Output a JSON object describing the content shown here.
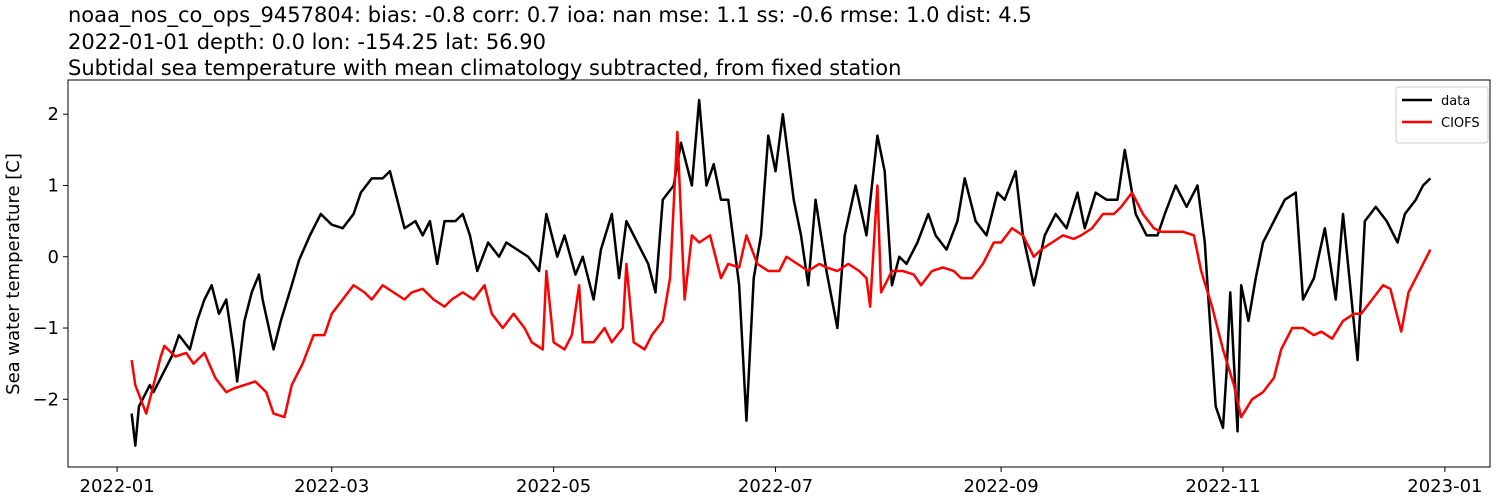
{
  "chart_data": {
    "type": "line",
    "title": [
      "noaa_nos_co_ops_9457804: bias: -0.8  corr: 0.7  ioa: nan  mse: 1.1  ss: -0.6  rmse: 1.0  dist: 4.5",
      "2022-01-01 depth: 0.0 lon: -154.25 lat: 56.90",
      "Subtidal sea temperature with mean climatology subtracted, from fixed station"
    ],
    "ylabel": "Sea water temperature [C]",
    "xlim": [
      -13.5,
      377.4
    ],
    "xticks": [
      {
        "value": 0,
        "label": "2022-01"
      },
      {
        "value": 59,
        "label": "2022-03"
      },
      {
        "value": 120,
        "label": "2022-05"
      },
      {
        "value": 181,
        "label": "2022-07"
      },
      {
        "value": 243,
        "label": "2022-09"
      },
      {
        "value": 304,
        "label": "2022-11"
      },
      {
        "value": 365,
        "label": "2023-01"
      }
    ],
    "ylim": [
      -2.95,
      2.48
    ],
    "yticks": [
      {
        "value": -2,
        "label": "−2"
      },
      {
        "value": -1,
        "label": "−1"
      },
      0,
      1,
      2
    ],
    "legend": "upper right",
    "series": [
      {
        "name": "data",
        "color": "#000000",
        "x": [
          4,
          5,
          6,
          9,
          10,
          12,
          15,
          17,
          20,
          22,
          24,
          26,
          28,
          30,
          32,
          33,
          35,
          37,
          39,
          40,
          43,
          45,
          48,
          50,
          53,
          56,
          59,
          62,
          65,
          67,
          70,
          73,
          75,
          77,
          79,
          82,
          84,
          86,
          88,
          90,
          93,
          95,
          97,
          99,
          102,
          105,
          107,
          110,
          113,
          116,
          118,
          121,
          123,
          126,
          128,
          131,
          133,
          136,
          138,
          140,
          143,
          146,
          148,
          150,
          153,
          155,
          158,
          160,
          162,
          164,
          166,
          168,
          171,
          173,
          175,
          177,
          179,
          181,
          183,
          186,
          188,
          190,
          192,
          195,
          198,
          200,
          203,
          206,
          209,
          211,
          213,
          215,
          217,
          220,
          223,
          225,
          228,
          231,
          233,
          236,
          239,
          242,
          244,
          247,
          249,
          252,
          255,
          258,
          261,
          264,
          266,
          269,
          272,
          275,
          277,
          280,
          283,
          286,
          288,
          291,
          294,
          297,
          299,
          300,
          302,
          304,
          305,
          306,
          308,
          309,
          311,
          313,
          315,
          318,
          321,
          324,
          326,
          329,
          332,
          335,
          337,
          341,
          343,
          346,
          349,
          352,
          354,
          357,
          359,
          361
        ],
        "values": [
          -2.2,
          -2.65,
          -2.1,
          -1.8,
          -1.9,
          -1.7,
          -1.4,
          -1.1,
          -1.3,
          -0.9,
          -0.6,
          -0.4,
          -0.8,
          -0.6,
          -1.3,
          -1.75,
          -0.9,
          -0.5,
          -0.25,
          -0.6,
          -1.3,
          -0.9,
          -0.4,
          -0.05,
          0.3,
          0.6,
          0.45,
          0.4,
          0.6,
          0.9,
          1.1,
          1.1,
          1.2,
          0.8,
          0.4,
          0.5,
          0.3,
          0.5,
          -0.1,
          0.5,
          0.5,
          0.6,
          0.3,
          -0.2,
          0.2,
          0.0,
          0.2,
          0.1,
          0.0,
          -0.2,
          0.6,
          0.0,
          0.3,
          -0.25,
          0.0,
          -0.6,
          0.1,
          0.6,
          -0.3,
          0.5,
          0.2,
          -0.1,
          -0.5,
          0.8,
          1.0,
          1.6,
          1.0,
          2.2,
          1.0,
          1.3,
          0.8,
          0.8,
          -0.4,
          -2.3,
          -0.3,
          0.3,
          1.7,
          1.2,
          2.0,
          0.8,
          0.3,
          -0.4,
          0.8,
          -0.2,
          -1.0,
          0.3,
          1.0,
          0.3,
          1.7,
          1.2,
          -0.4,
          0.0,
          -0.1,
          0.2,
          0.6,
          0.3,
          0.1,
          0.5,
          1.1,
          0.5,
          0.3,
          0.9,
          0.8,
          1.2,
          0.3,
          -0.4,
          0.3,
          0.6,
          0.4,
          0.9,
          0.4,
          0.9,
          0.8,
          0.8,
          1.5,
          0.6,
          0.3,
          0.3,
          0.6,
          1.0,
          0.7,
          1.0,
          0.2,
          -0.6,
          -2.1,
          -2.4,
          -1.6,
          -0.5,
          -2.45,
          -0.4,
          -0.9,
          -0.3,
          0.2,
          0.5,
          0.8,
          0.9,
          -0.6,
          -0.3,
          0.4,
          -0.6,
          0.6,
          -1.45,
          0.5,
          0.7,
          0.5,
          0.2,
          0.6,
          0.8,
          1.0,
          1.1
        ]
      },
      {
        "name": "CIOFS",
        "color": "#ff0000",
        "x": [
          4,
          5,
          8,
          10,
          12,
          13,
          16,
          19,
          21,
          24,
          27,
          30,
          32,
          35,
          38,
          41,
          43,
          46,
          48,
          51,
          54,
          57,
          59,
          62,
          65,
          68,
          70,
          73,
          76,
          79,
          81,
          84,
          87,
          90,
          92,
          95,
          98,
          101,
          103,
          106,
          109,
          112,
          114,
          117,
          118,
          120,
          123,
          125,
          127,
          128,
          131,
          134,
          136,
          139,
          140,
          142,
          145,
          147,
          150,
          152,
          154,
          156,
          158,
          160,
          163,
          166,
          168,
          171,
          173,
          176,
          179,
          182,
          184,
          187,
          190,
          193,
          195,
          198,
          201,
          204,
          206,
          207,
          209,
          210,
          213,
          216,
          219,
          221,
          224,
          227,
          230,
          232,
          235,
          238,
          241,
          243,
          246,
          249,
          252,
          254,
          257,
          260,
          263,
          265,
          268,
          271,
          274,
          276,
          279,
          282,
          285,
          287,
          290,
          293,
          296,
          298,
          301,
          304,
          307,
          309,
          312,
          315,
          318,
          320,
          323,
          326,
          329,
          331,
          334,
          337,
          340,
          342,
          345,
          348,
          350,
          353,
          355,
          358,
          361
        ],
        "values": [
          -1.45,
          -1.8,
          -2.2,
          -1.8,
          -1.4,
          -1.25,
          -1.4,
          -1.35,
          -1.5,
          -1.35,
          -1.7,
          -1.9,
          -1.85,
          -1.8,
          -1.75,
          -1.9,
          -2.2,
          -2.25,
          -1.8,
          -1.5,
          -1.1,
          -1.1,
          -0.8,
          -0.6,
          -0.4,
          -0.5,
          -0.6,
          -0.4,
          -0.5,
          -0.6,
          -0.5,
          -0.45,
          -0.6,
          -0.7,
          -0.6,
          -0.5,
          -0.6,
          -0.4,
          -0.8,
          -1.0,
          -0.8,
          -1.0,
          -1.2,
          -1.3,
          -0.2,
          -1.2,
          -1.3,
          -1.1,
          -0.4,
          -1.2,
          -1.2,
          -1.0,
          -1.2,
          -1.0,
          -0.1,
          -1.2,
          -1.3,
          -1.1,
          -0.9,
          -0.3,
          1.75,
          -0.6,
          0.3,
          0.2,
          0.3,
          -0.3,
          -0.1,
          -0.15,
          0.3,
          -0.1,
          -0.2,
          -0.2,
          0.0,
          -0.1,
          -0.2,
          -0.1,
          -0.15,
          -0.2,
          -0.1,
          -0.2,
          -0.3,
          -0.7,
          1.0,
          -0.5,
          -0.2,
          -0.2,
          -0.25,
          -0.4,
          -0.2,
          -0.15,
          -0.2,
          -0.3,
          -0.3,
          -0.1,
          0.2,
          0.2,
          0.4,
          0.3,
          0.0,
          0.1,
          0.2,
          0.3,
          0.25,
          0.3,
          0.4,
          0.6,
          0.6,
          0.7,
          0.9,
          0.6,
          0.4,
          0.35,
          0.35,
          0.35,
          0.3,
          -0.2,
          -0.7,
          -1.3,
          -1.8,
          -2.25,
          -2.0,
          -1.9,
          -1.7,
          -1.3,
          -1.0,
          -1.0,
          -1.1,
          -1.05,
          -1.15,
          -0.9,
          -0.8,
          -0.8,
          -0.6,
          -0.4,
          -0.45,
          -1.05,
          -0.5,
          -0.2,
          0.1
        ]
      }
    ]
  }
}
